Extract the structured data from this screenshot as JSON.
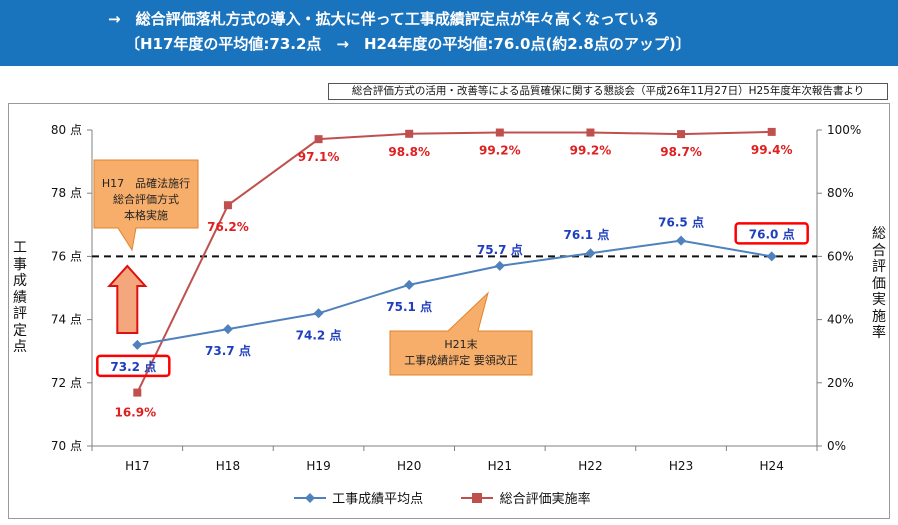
{
  "header": {
    "line1": "→　総合評価落札方式の導入・拡大に伴って工事成績評定点が年々高くなっている",
    "line2": "〔H17年度の平均値:73.2点　→　H24年度の平均値:76.0点(約2.8点のアップ)〕"
  },
  "source_note": "総合評価方式の活用・改善等による品質確保に関する懇談会（平成26年11月27日）H25年度年次報告書より",
  "colors": {
    "banner": "#1a73bd",
    "score_series": "#4f81bd",
    "rate_series": "#c0504d",
    "score_label": "#1f3fbf",
    "rate_label": "#e02020",
    "highlight_box": "#ff0000",
    "callout_fill": "#f7ae6a",
    "callout_stroke": "#e0832c",
    "arrow_fill": "#f4a67c",
    "arrow_stroke": "#e01010"
  },
  "chart_data": {
    "type": "line",
    "categories": [
      "H17",
      "H18",
      "H19",
      "H20",
      "H21",
      "H22",
      "H23",
      "H24"
    ],
    "y_left": {
      "label": "工事成績評定点",
      "range": [
        70,
        80
      ],
      "ticks": [
        70,
        72,
        74,
        76,
        78,
        80
      ],
      "tick_labels": [
        "70 点",
        "72 点",
        "74 点",
        "76 点",
        "78 点",
        "80 点"
      ]
    },
    "y_right": {
      "label": "総合評価実施率",
      "range": [
        0,
        100
      ],
      "ticks": [
        0,
        20,
        40,
        60,
        80,
        100
      ],
      "tick_labels": [
        "0%",
        "20%",
        "40%",
        "60%",
        "80%",
        "100%"
      ]
    },
    "reference_line": {
      "value": 76,
      "axis": "left",
      "style": "dashed"
    },
    "series": [
      {
        "name": "工事成績平均点",
        "axis": "left",
        "marker": "diamond",
        "values": [
          73.2,
          73.7,
          74.2,
          75.1,
          75.7,
          76.1,
          76.5,
          76.0
        ],
        "labels": [
          "73.2 点",
          "73.7 点",
          "74.2 点",
          "75.1 点",
          "75.7 点",
          "76.1 点",
          "76.5 点",
          "76.0 点"
        ],
        "highlighted": [
          0,
          7
        ]
      },
      {
        "name": "総合評価実施率",
        "axis": "right",
        "marker": "square",
        "values": [
          16.9,
          76.2,
          97.1,
          98.8,
          99.2,
          99.2,
          98.7,
          99.4
        ],
        "labels": [
          "16.9%",
          "76.2%",
          "97.1%",
          "98.8%",
          "99.2%",
          "99.2%",
          "98.7%",
          "99.4%"
        ]
      }
    ],
    "annotations": [
      {
        "lines": [
          "H17　品確法施行",
          "総合評価方式",
          "本格実施"
        ],
        "category": "H17"
      },
      {
        "lines": [
          "H21末",
          "工事成績評定 要領改正"
        ],
        "category": "H21"
      }
    ],
    "legend": "bottom"
  }
}
